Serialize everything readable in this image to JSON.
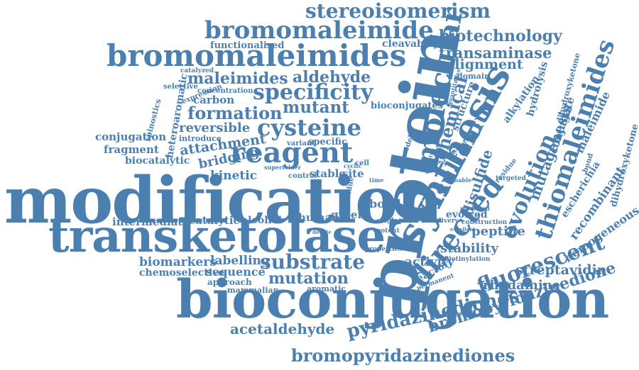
{
  "cloud": {
    "color": "#4a7fb0",
    "words": [
      "modification",
      "transketolase",
      "bioconjugation",
      "protein",
      "synthesis",
      "bromomaleimides",
      "bromomaleimide",
      "stereoisomerism",
      "reagent",
      "cysteine",
      "molecular",
      "directed",
      "thiomaleimides",
      "evolution",
      "fluorescent",
      "pyridazinediones",
      "bromopyridazinediones",
      "bromopyridazinedione",
      "specificity",
      "formation",
      "maleimides",
      "aldehyde",
      "mutant",
      "functionalised",
      "cleavable",
      "biotechnology",
      "transaminase",
      "alignment",
      "substrate",
      "mutation",
      "acetaldehyde",
      "sulfonium",
      "chemical",
      "disulfide",
      "mutagenesis",
      "conjugate",
      "escherichia",
      "recombinant",
      "homogeneous",
      "streptavidin",
      "rhodamine",
      "stability",
      "activity",
      "peptide",
      "evolved",
      "biomarkers",
      "chemoselective",
      "labelling",
      "sequence",
      "approach",
      "mammalian",
      "aromatic",
      "intermediate",
      "catalytic",
      "alcohol",
      "human",
      "green",
      "kinetic",
      "bridging",
      "reversible",
      "network",
      "carbon",
      "bioconjugates",
      "conjugation",
      "fragment",
      "biocatalytic",
      "heteroaromatic",
      "spinostics",
      "selective",
      "expression",
      "concentration",
      "enzyme",
      "catalyzed",
      "structure",
      "alkylation",
      "hydrolysis",
      "maleimide",
      "dihydroxyketone",
      "domain",
      "quantitative",
      "bond",
      "stable",
      "site",
      "cell",
      "control",
      "specific",
      "variant",
      "introduce",
      "reactor",
      "permanent",
      "biotinylation",
      "properties",
      "potent",
      "single",
      "delivery",
      "construction",
      "native",
      "mediated",
      "targeted",
      "residue",
      "time",
      "superfolder",
      "model",
      "cyclic",
      "saturation",
      "affinity",
      "linked",
      "tunable",
      "functional",
      "attachment",
      "excellent",
      "double",
      "factor"
    ]
  }
}
